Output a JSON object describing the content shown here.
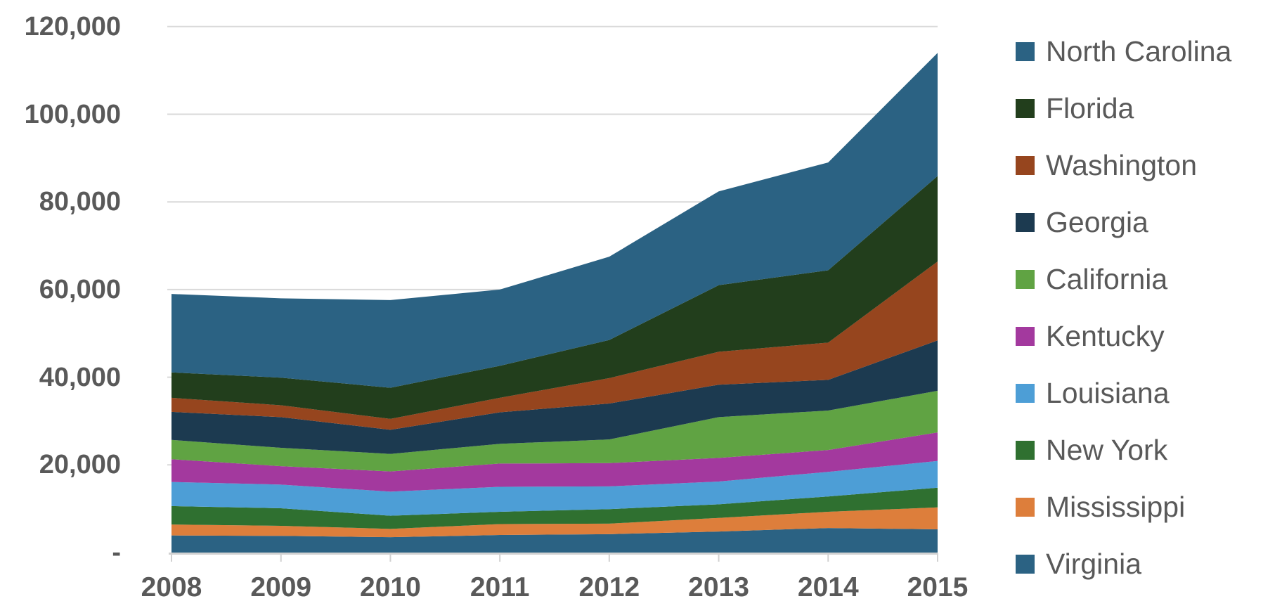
{
  "chart_data": {
    "type": "area",
    "stacked": true,
    "title": "",
    "xlabel": "",
    "ylabel": "",
    "categories": [
      "2008",
      "2009",
      "2010",
      "2011",
      "2012",
      "2013",
      "2014",
      "2015"
    ],
    "series": [
      {
        "name": "Virginia",
        "color": "#2B6283",
        "values": [
          3900,
          3800,
          3500,
          4000,
          4200,
          4800,
          5600,
          5300
        ]
      },
      {
        "name": "Mississippi",
        "color": "#DD7E3B",
        "values": [
          2500,
          2300,
          1900,
          2500,
          2400,
          3100,
          3700,
          5000
        ]
      },
      {
        "name": "New York",
        "color": "#2F7030",
        "values": [
          4200,
          4000,
          3000,
          2800,
          3300,
          3100,
          3500,
          4500
        ]
      },
      {
        "name": "Louisiana",
        "color": "#4D9ED6",
        "values": [
          5500,
          5400,
          5500,
          5700,
          5200,
          5200,
          5600,
          6100
        ]
      },
      {
        "name": "Kentucky",
        "color": "#A3399E",
        "values": [
          5200,
          4200,
          4600,
          5300,
          5300,
          5400,
          5000,
          6500
        ]
      },
      {
        "name": "California",
        "color": "#60A343",
        "values": [
          4400,
          4200,
          4000,
          4500,
          5400,
          9300,
          9000,
          9500
        ]
      },
      {
        "name": "Georgia",
        "color": "#1C3A50",
        "values": [
          6400,
          7000,
          5500,
          7200,
          8200,
          7400,
          7000,
          11500
        ]
      },
      {
        "name": "Washington",
        "color": "#96451E",
        "values": [
          3200,
          2700,
          2500,
          3300,
          5800,
          7500,
          8500,
          18000
        ]
      },
      {
        "name": "Florida",
        "color": "#223E1C",
        "values": [
          5800,
          6300,
          7100,
          7300,
          8700,
          15200,
          16500,
          19500
        ]
      },
      {
        "name": "North Carolina",
        "color": "#2B6283",
        "values": [
          17900,
          18100,
          20000,
          17400,
          19000,
          21400,
          24600,
          28100
        ]
      }
    ],
    "legend": [
      "North Carolina",
      "Florida",
      "Washington",
      "Georgia",
      "California",
      "Kentucky",
      "Louisiana",
      "New York",
      "Mississippi",
      "Virginia"
    ],
    "legend_position": "right",
    "grid": true,
    "ylim": [
      0,
      120000
    ],
    "yticks": [
      {
        "label": "120,000",
        "value": 120000
      },
      {
        "label": "100,000",
        "value": 100000
      },
      {
        "label": "80,000",
        "value": 80000
      },
      {
        "label": "60,000",
        "value": 60000
      },
      {
        "label": "40,000",
        "value": 40000
      },
      {
        "label": "20,000",
        "value": 20000
      },
      {
        "label": "-",
        "value": 0
      }
    ],
    "colors": {
      "gridline": "#D9D9D9",
      "axis": "#D1D1D1",
      "tick_text": "#595959"
    }
  }
}
